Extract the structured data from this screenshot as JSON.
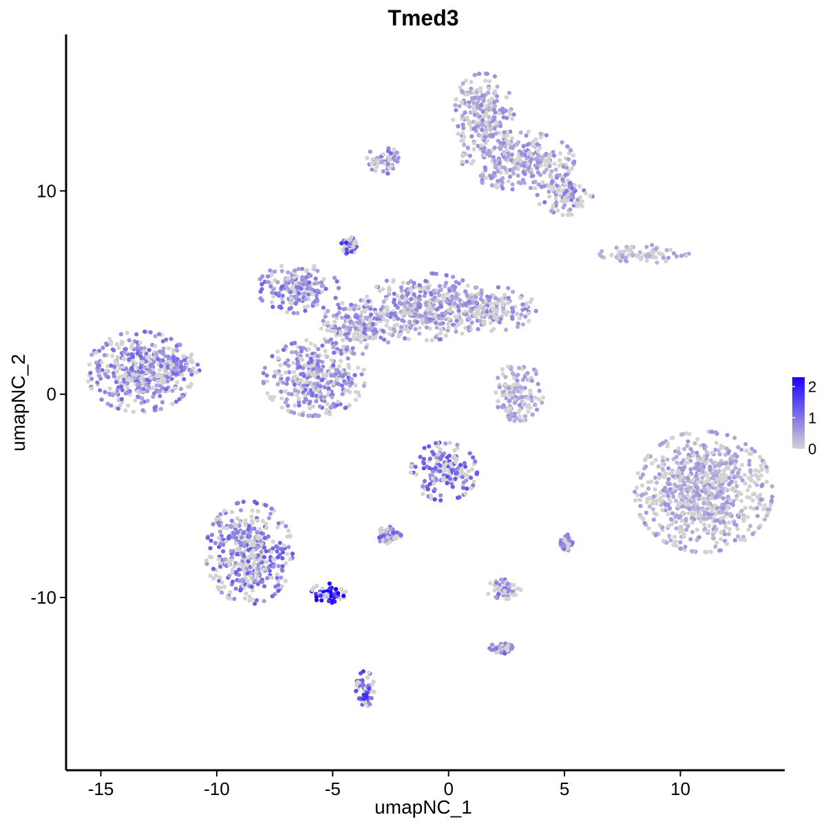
{
  "chart_data": {
    "type": "scatter",
    "title": "Tmed3",
    "xlabel": "umapNC_1",
    "ylabel": "umapNC_2",
    "xlim": [
      -16.5,
      14.5
    ],
    "ylim": [
      -18.5,
      17.7
    ],
    "x_ticks": [
      -15,
      -10,
      -5,
      0,
      5,
      10
    ],
    "x_tick_labels": [
      "-15",
      "-10",
      "-5",
      "0",
      "5",
      "10"
    ],
    "y_ticks": [
      -10,
      0,
      10
    ],
    "y_tick_labels": [
      "-10",
      "0",
      "10"
    ],
    "grid": false,
    "legend": {
      "placement": "right",
      "type": "colorbar",
      "ticks": [
        0,
        1,
        2
      ],
      "tick_labels": [
        "0",
        "1",
        "2"
      ],
      "range": [
        0,
        2.3
      ],
      "low_color": "#d3d3d3",
      "high_color": "#1a00ff"
    },
    "clusters": [
      {
        "center": [
          -13.3,
          1.1
        ],
        "spread": [
          1.05,
          0.9
        ],
        "mean_expression": 0.85
      },
      {
        "center": [
          -12.0,
          1.4
        ],
        "spread": [
          0.6,
          0.35
        ],
        "mean_expression": 0.8
      },
      {
        "center": [
          -6.5,
          5.2
        ],
        "spread": [
          0.8,
          0.55
        ],
        "mean_expression": 0.85
      },
      {
        "center": [
          -5.8,
          0.8
        ],
        "spread": [
          1.0,
          0.85
        ],
        "mean_expression": 0.8
      },
      {
        "center": [
          -3.8,
          3.3
        ],
        "spread": [
          0.8,
          0.6
        ],
        "mean_expression": 0.75
      },
      {
        "center": [
          -1.0,
          4.3
        ],
        "spread": [
          1.2,
          0.75
        ],
        "mean_expression": 0.7
      },
      {
        "center": [
          1.8,
          4.2
        ],
        "spread": [
          0.9,
          0.5
        ],
        "mean_expression": 0.65
      },
      {
        "center": [
          -4.3,
          7.3
        ],
        "spread": [
          0.15,
          0.2
        ],
        "mean_expression": 1.3
      },
      {
        "center": [
          1.5,
          13.8
        ],
        "spread": [
          0.6,
          0.9
        ],
        "mean_expression": 0.6
      },
      {
        "center": [
          3.0,
          11.5
        ],
        "spread": [
          1.1,
          0.65
        ],
        "mean_expression": 0.6
      },
      {
        "center": [
          5.0,
          9.8
        ],
        "spread": [
          0.55,
          0.45
        ],
        "mean_expression": 0.75
      },
      {
        "center": [
          -2.8,
          11.5
        ],
        "spread": [
          0.35,
          0.3
        ],
        "mean_expression": 0.8
      },
      {
        "center": [
          8.5,
          6.9
        ],
        "spread": [
          0.9,
          0.2
        ],
        "mean_expression": 0.45
      },
      {
        "center": [
          3.0,
          0.1
        ],
        "spread": [
          0.5,
          0.65
        ],
        "mean_expression": 0.5
      },
      {
        "center": [
          11.0,
          -4.8
        ],
        "spread": [
          1.35,
          1.35
        ],
        "mean_expression": 0.5
      },
      {
        "center": [
          -8.6,
          -7.8
        ],
        "spread": [
          0.85,
          1.15
        ],
        "mean_expression": 0.95
      },
      {
        "center": [
          -5.2,
          -9.8
        ],
        "spread": [
          0.35,
          0.22
        ],
        "mean_expression": 2.1
      },
      {
        "center": [
          -3.6,
          -14.5
        ],
        "spread": [
          0.18,
          0.4
        ],
        "mean_expression": 1.3
      },
      {
        "center": [
          -0.2,
          -3.8
        ],
        "spread": [
          0.65,
          0.65
        ],
        "mean_expression": 1.05
      },
      {
        "center": [
          -2.6,
          -6.9
        ],
        "spread": [
          0.25,
          0.2
        ],
        "mean_expression": 0.9
      },
      {
        "center": [
          2.4,
          -9.6
        ],
        "spread": [
          0.35,
          0.22
        ],
        "mean_expression": 0.85
      },
      {
        "center": [
          2.3,
          -12.5
        ],
        "spread": [
          0.25,
          0.12
        ],
        "mean_expression": 0.9
      },
      {
        "center": [
          5.1,
          -7.3
        ],
        "spread": [
          0.12,
          0.18
        ],
        "mean_expression": 0.8
      }
    ]
  }
}
